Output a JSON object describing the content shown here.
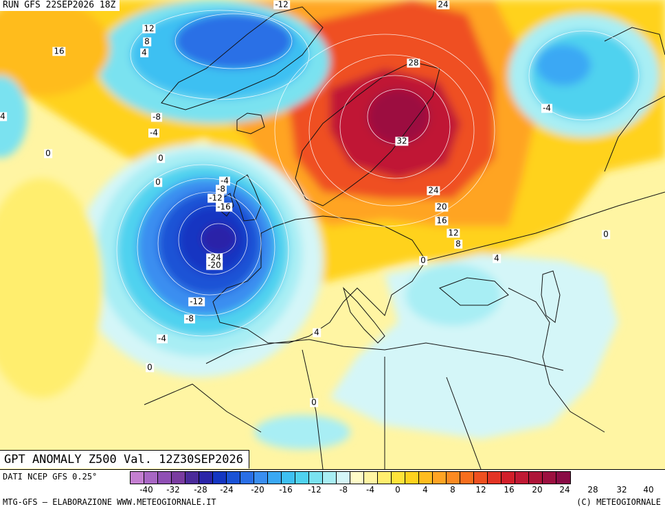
{
  "header": {
    "run": "RUN GFS 22SEP2026 18Z",
    "title": "GPT ANOMALY Z500 Val. 12Z30SEP2026"
  },
  "footer": {
    "data_source": "DATI NCEP GFS 0.25°",
    "credit_left": "MTG-GFS — ELABORAZIONE WWW.METEOGIORNALE.IT",
    "credit_right": "(C) METEOGIORNALE"
  },
  "legend": {
    "colors": [
      "#c47fd1",
      "#a866c4",
      "#8f4fb4",
      "#7a3ca0",
      "#4b2b9a",
      "#2a24a8",
      "#1436c2",
      "#1a52d6",
      "#2a6fe6",
      "#3a8ef0",
      "#3aa8f4",
      "#3ec0f2",
      "#4fd2ef",
      "#7ae2f0",
      "#a8eef4",
      "#d4f6f8",
      "#fffcc8",
      "#fff5a3",
      "#ffee6e",
      "#ffe33a",
      "#ffd21e",
      "#ffbc1f",
      "#ffa424",
      "#fc8a22",
      "#f76e1e",
      "#ef5020",
      "#e33424",
      "#d21f2a",
      "#c01934",
      "#ad1438",
      "#9c1040",
      "#8a0c46"
    ],
    "tick_labels": [
      "-40",
      "-32",
      "-28",
      "-24",
      "-20",
      "-16",
      "-12",
      "-8",
      "-4",
      "0",
      "4",
      "8",
      "12",
      "16",
      "20",
      "24",
      "28",
      "32",
      "40"
    ]
  },
  "contour_labels": [
    {
      "text": "-12"
    },
    {
      "text": "24"
    },
    {
      "text": "12"
    },
    {
      "text": "8"
    },
    {
      "text": "4"
    },
    {
      "text": "16"
    },
    {
      "text": "28"
    },
    {
      "text": "32"
    },
    {
      "text": "-4"
    },
    {
      "text": "-8"
    },
    {
      "text": "-4"
    },
    {
      "text": "0"
    },
    {
      "text": "0"
    },
    {
      "text": "0"
    },
    {
      "text": "-4"
    },
    {
      "text": "-8"
    },
    {
      "text": "-12"
    },
    {
      "text": "-16"
    },
    {
      "text": "-24"
    },
    {
      "text": "-20"
    },
    {
      "text": "24"
    },
    {
      "text": "20"
    },
    {
      "text": "16"
    },
    {
      "text": "12"
    },
    {
      "text": "8"
    },
    {
      "text": "0"
    },
    {
      "text": "4"
    },
    {
      "text": "0"
    },
    {
      "text": "-12"
    },
    {
      "text": "-8"
    },
    {
      "text": "-4"
    },
    {
      "text": "0"
    },
    {
      "text": "4"
    },
    {
      "text": "0"
    },
    {
      "text": "4"
    }
  ]
}
